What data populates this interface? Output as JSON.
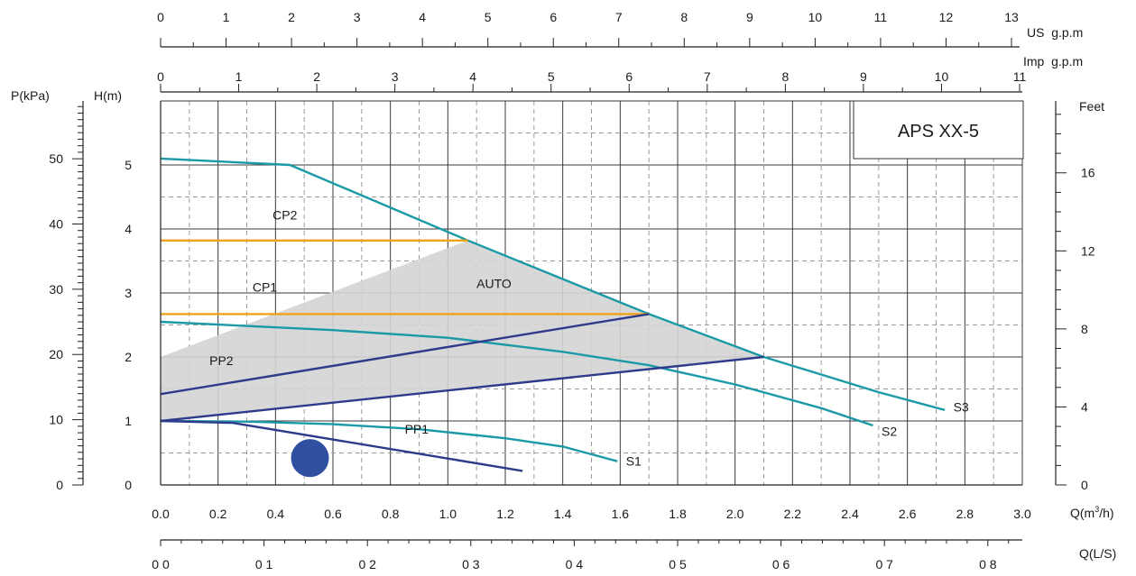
{
  "chart_data": {
    "type": "line",
    "title": "APS XX-5",
    "x": {
      "label": "Q(m³/h)",
      "lim": [
        0,
        3.0
      ],
      "ticks": [
        "0.0",
        "0.2",
        "0.4",
        "0.6",
        "0.8",
        "1.0",
        "1.2",
        "1.4",
        "1.6",
        "1.8",
        "2.0",
        "2.2",
        "2.4",
        "2.6",
        "2.8",
        "3.0"
      ]
    },
    "x_ls": {
      "label": "Q(L/S)",
      "ticks": [
        "0 0",
        "0 1",
        "0 2",
        "0 3",
        "0 4",
        "0 5",
        "0 6",
        "0 7",
        "0 8"
      ]
    },
    "x_usgpm": {
      "label": "US  g.p.m",
      "ticks": [
        "0",
        "1",
        "2",
        "3",
        "4",
        "5",
        "6",
        "7",
        "8",
        "9",
        "10",
        "11",
        "12",
        "13"
      ]
    },
    "x_impgpm": {
      "label": "Imp  g.p.m",
      "ticks": [
        "0",
        "1",
        "2",
        "3",
        "4",
        "5",
        "6",
        "7",
        "8",
        "9",
        "10",
        "11"
      ]
    },
    "y": {
      "label": "H(m)",
      "lim": [
        0,
        6.0
      ],
      "ticks": [
        "0",
        "1",
        "2",
        "3",
        "4",
        "5"
      ]
    },
    "y_kpa": {
      "label": "P(kPa)",
      "ticks": [
        "0",
        "10",
        "20",
        "30",
        "40",
        "50"
      ]
    },
    "y_feet": {
      "label": "Feet",
      "ticks": [
        "0",
        "4",
        "8",
        "12",
        "16"
      ]
    },
    "auto_region_label": "AUTO",
    "auto_region": [
      [
        0,
        2.0
      ],
      [
        1.07,
        3.82
      ],
      [
        1.7,
        2.67
      ],
      [
        2.1,
        2.0
      ],
      [
        0,
        1.0
      ]
    ],
    "series": [
      {
        "name": "S3",
        "color": "#1a9aa6",
        "points": [
          [
            0,
            5.1
          ],
          [
            0.45,
            5.0
          ],
          [
            1.07,
            3.82
          ],
          [
            1.7,
            2.67
          ],
          [
            2.1,
            2.0
          ],
          [
            2.5,
            1.45
          ],
          [
            2.73,
            1.17
          ]
        ]
      },
      {
        "name": "S2",
        "color": "#1a9aa6",
        "points": [
          [
            0,
            2.55
          ],
          [
            0.6,
            2.42
          ],
          [
            1.0,
            2.3
          ],
          [
            1.4,
            2.08
          ],
          [
            1.7,
            1.87
          ],
          [
            2.0,
            1.57
          ],
          [
            2.3,
            1.2
          ],
          [
            2.48,
            0.93
          ]
        ]
      },
      {
        "name": "S1",
        "color": "#1a9aa6",
        "points": [
          [
            0,
            1.0
          ],
          [
            0.3,
            0.99
          ],
          [
            0.6,
            0.95
          ],
          [
            0.9,
            0.87
          ],
          [
            1.2,
            0.73
          ],
          [
            1.4,
            0.6
          ],
          [
            1.59,
            0.37
          ]
        ]
      },
      {
        "name": "CP2",
        "color": "#f0a21c",
        "points": [
          [
            0,
            3.82
          ],
          [
            1.07,
            3.82
          ]
        ]
      },
      {
        "name": "CP1",
        "color": "#f0a21c",
        "points": [
          [
            0,
            2.67
          ],
          [
            1.7,
            2.67
          ]
        ]
      },
      {
        "name": "PP2",
        "color": "#2f3a8a",
        "points": [
          [
            0,
            1.42
          ],
          [
            1.7,
            2.67
          ]
        ]
      },
      {
        "name": "PP1",
        "color": "#2f3a8a",
        "points": [
          [
            0,
            1.0
          ],
          [
            2.1,
            2.0
          ]
        ]
      },
      {
        "name": "",
        "color": "#2f3a8a",
        "points": [
          [
            0,
            1.0
          ],
          [
            0.25,
            0.97
          ],
          [
            1.26,
            0.22
          ]
        ]
      }
    ],
    "curve_labels": [
      {
        "text": "S3",
        "x": 2.76,
        "y": 1.15
      },
      {
        "text": "S2",
        "x": 2.51,
        "y": 0.77
      },
      {
        "text": "S1",
        "x": 1.62,
        "y": 0.3
      },
      {
        "text": "CP2",
        "x": 0.39,
        "y": 4.15
      },
      {
        "text": "CP1",
        "x": 0.32,
        "y": 3.02
      },
      {
        "text": "PP2",
        "x": 0.17,
        "y": 1.87
      },
      {
        "text": "PP1",
        "x": 0.85,
        "y": 0.8
      },
      {
        "text": "AUTO",
        "x": 1.1,
        "y": 3.08
      }
    ],
    "night_mode_icon": {
      "name": "moon-icon",
      "color": "#2f4fa0",
      "x": 0.52,
      "y": 0.42
    },
    "grid": true
  }
}
